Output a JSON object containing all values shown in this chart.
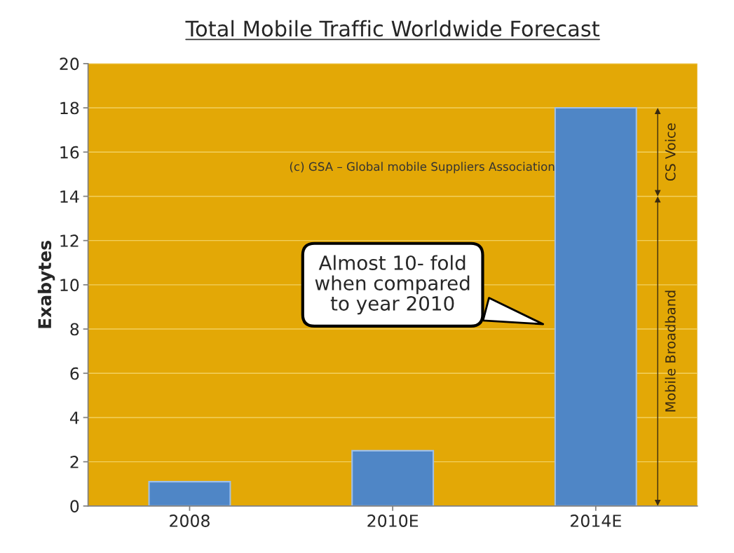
{
  "chart_data": {
    "type": "bar",
    "title": "Total Mobile Traffic Worldwide Forecast",
    "ylabel": "Exabytes",
    "categories": [
      "2008",
      "2010E",
      "2014E"
    ],
    "values": [
      1.1,
      2.5,
      18
    ],
    "color": "#4f86c6",
    "ylim": [
      0,
      20
    ],
    "yticks": [
      0,
      2,
      4,
      6,
      8,
      10,
      12,
      14,
      16,
      18,
      20
    ],
    "grid": "y",
    "annotations": [
      "(c) GSA – Global mobile Suppliers Association",
      "Almost 10- fold\nwhen compared\nto year 2010",
      "Mobile Broadband",
      "CS Voice"
    ]
  }
}
